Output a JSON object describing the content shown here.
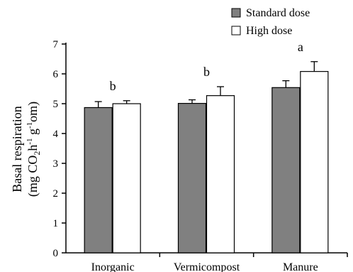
{
  "chart_data": {
    "type": "bar",
    "title": "",
    "xlabel": "",
    "ylabel_line1": "Basal respiration",
    "ylabel_line2_parts": {
      "a": "(mg CO",
      "sub": "2",
      "b": "h",
      "sup1": "-1",
      "c": " g",
      "sup2": "-1",
      "d": "om)"
    },
    "ylim": [
      0,
      7
    ],
    "yticks": [
      "0",
      "1",
      "2",
      "3",
      "4",
      "5",
      "6",
      "7"
    ],
    "categories": [
      "Inorganic",
      "Vermicompost",
      "Manure"
    ],
    "series": [
      {
        "name": "Standard dose",
        "values": [
          4.87,
          5.01,
          5.54
        ],
        "errors": [
          0.2,
          0.12,
          0.23
        ],
        "color": "#808080"
      },
      {
        "name": "High dose",
        "values": [
          5.0,
          5.27,
          6.08
        ],
        "errors": [
          0.1,
          0.3,
          0.33
        ],
        "color": "#ffffff"
      }
    ],
    "significance_letters": [
      "b",
      "b",
      "a"
    ],
    "legend_position": "top-right",
    "grid": false
  }
}
